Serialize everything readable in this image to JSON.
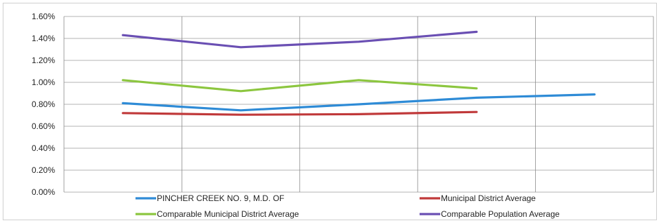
{
  "chart_data": {
    "type": "line",
    "x": [
      "1",
      "2",
      "3",
      "4",
      "5"
    ],
    "ylim": [
      0,
      1.6
    ],
    "yticks": [
      "0.00%",
      "0.20%",
      "0.40%",
      "0.60%",
      "0.80%",
      "1.00%",
      "1.20%",
      "1.40%",
      "1.60%"
    ],
    "grid": true,
    "legend_position": "bottom",
    "series": [
      {
        "name": "PINCHER CREEK NO. 9, M.D. OF",
        "color": "#2e8bd6",
        "values": [
          0.81,
          0.745,
          0.8,
          0.86,
          0.89
        ]
      },
      {
        "name": "Municipal District Average",
        "color": "#c0393a",
        "values": [
          0.72,
          0.705,
          0.71,
          0.73,
          null
        ]
      },
      {
        "name": "Comparable Municipal District Average",
        "color": "#8cc63f",
        "values": [
          1.02,
          0.92,
          1.02,
          0.945,
          null
        ]
      },
      {
        "name": "Comparable Population Average",
        "color": "#6a4fb3",
        "values": [
          1.43,
          1.32,
          1.37,
          1.46,
          null
        ]
      }
    ]
  }
}
